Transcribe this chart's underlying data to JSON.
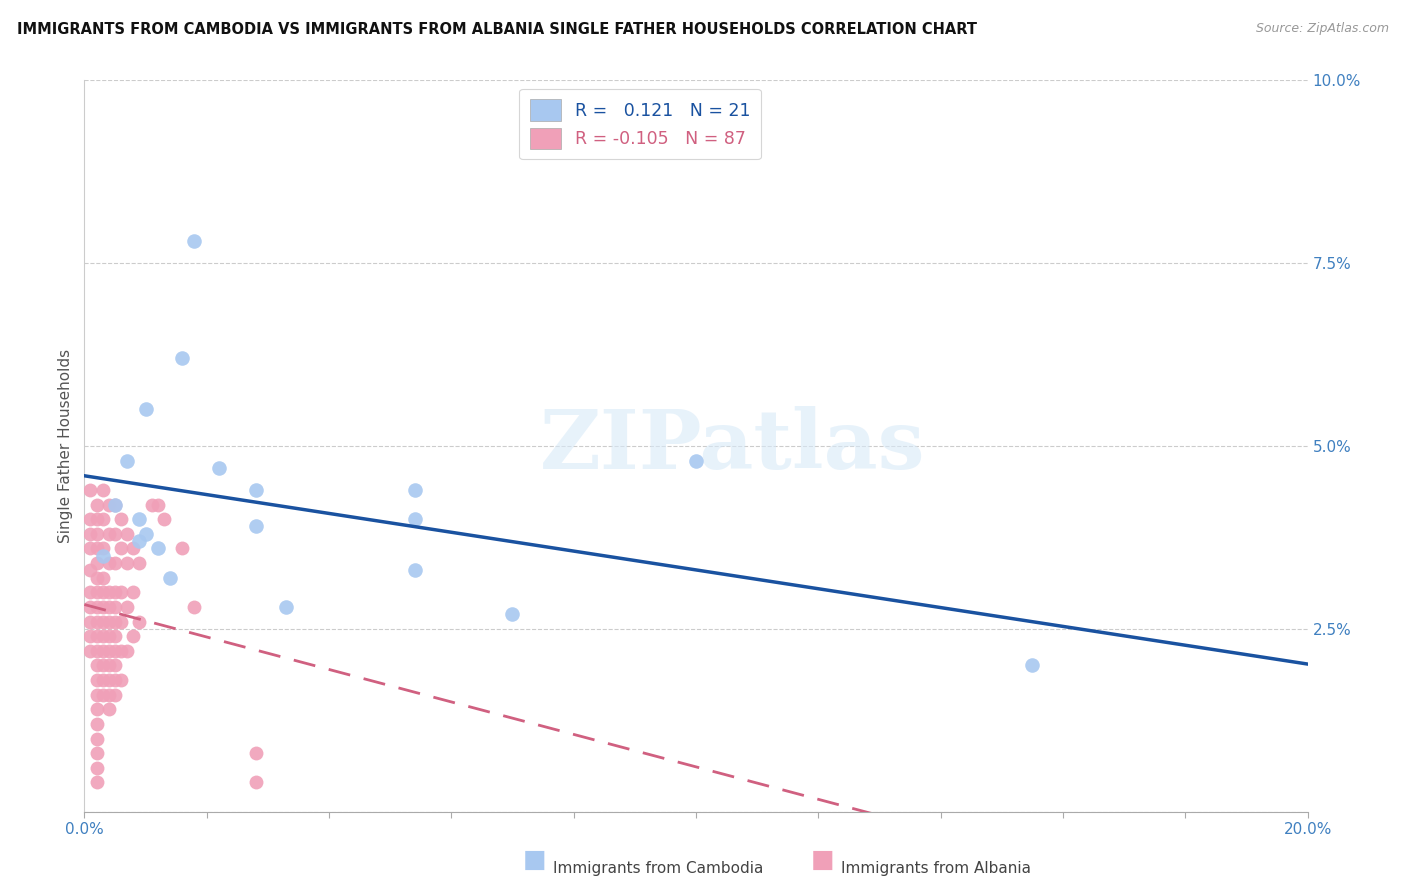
{
  "title": "IMMIGRANTS FROM CAMBODIA VS IMMIGRANTS FROM ALBANIA SINGLE FATHER HOUSEHOLDS CORRELATION CHART",
  "source": "Source: ZipAtlas.com",
  "ylabel": "Single Father Households",
  "xlim": [
    0.0,
    0.2
  ],
  "ylim": [
    0.0,
    0.1
  ],
  "xticks_major": [
    0.0,
    0.2
  ],
  "xtick_major_labels": [
    "0.0%",
    "20.0%"
  ],
  "xticks_minor": [
    0.0,
    0.02,
    0.04,
    0.06,
    0.08,
    0.1,
    0.12,
    0.14,
    0.16,
    0.18,
    0.2
  ],
  "yticks_right": [
    0.0,
    0.025,
    0.05,
    0.075,
    0.1
  ],
  "ytick_labels_right": [
    "",
    "2.5%",
    "5.0%",
    "7.5%",
    "10.0%"
  ],
  "cambodia_color": "#A8C8F0",
  "albania_color": "#F0A0B8",
  "cambodia_line_color": "#1A52A0",
  "albania_line_color": "#D06080",
  "R_cambodia": 0.121,
  "N_cambodia": 21,
  "R_albania": -0.105,
  "N_albania": 87,
  "background_color": "#FFFFFF",
  "watermark": "ZIPatlas",
  "grid_color": "#CCCCCC",
  "cambodia_x": [
    0.003,
    0.005,
    0.007,
    0.009,
    0.009,
    0.01,
    0.01,
    0.012,
    0.014,
    0.016,
    0.018,
    0.022,
    0.028,
    0.028,
    0.033,
    0.054,
    0.054,
    0.054,
    0.07,
    0.1,
    0.155
  ],
  "cambodia_y": [
    0.035,
    0.042,
    0.048,
    0.04,
    0.037,
    0.055,
    0.038,
    0.036,
    0.032,
    0.062,
    0.078,
    0.047,
    0.044,
    0.039,
    0.028,
    0.044,
    0.04,
    0.033,
    0.027,
    0.048,
    0.02
  ],
  "albania_x": [
    0.001,
    0.001,
    0.001,
    0.001,
    0.001,
    0.001,
    0.001,
    0.001,
    0.001,
    0.001,
    0.002,
    0.002,
    0.002,
    0.002,
    0.002,
    0.002,
    0.002,
    0.002,
    0.002,
    0.002,
    0.002,
    0.002,
    0.002,
    0.002,
    0.002,
    0.002,
    0.002,
    0.002,
    0.002,
    0.002,
    0.003,
    0.003,
    0.003,
    0.003,
    0.003,
    0.003,
    0.003,
    0.003,
    0.003,
    0.003,
    0.003,
    0.003,
    0.004,
    0.004,
    0.004,
    0.004,
    0.004,
    0.004,
    0.004,
    0.004,
    0.004,
    0.004,
    0.004,
    0.004,
    0.005,
    0.005,
    0.005,
    0.005,
    0.005,
    0.005,
    0.005,
    0.005,
    0.005,
    0.005,
    0.005,
    0.006,
    0.006,
    0.006,
    0.006,
    0.006,
    0.006,
    0.007,
    0.007,
    0.007,
    0.007,
    0.008,
    0.008,
    0.008,
    0.009,
    0.009,
    0.011,
    0.012,
    0.013,
    0.016,
    0.018,
    0.028,
    0.028
  ],
  "albania_y": [
    0.044,
    0.04,
    0.038,
    0.036,
    0.033,
    0.03,
    0.028,
    0.026,
    0.024,
    0.022,
    0.042,
    0.04,
    0.038,
    0.036,
    0.034,
    0.032,
    0.03,
    0.028,
    0.026,
    0.024,
    0.022,
    0.02,
    0.018,
    0.016,
    0.014,
    0.012,
    0.01,
    0.008,
    0.006,
    0.004,
    0.044,
    0.04,
    0.036,
    0.032,
    0.03,
    0.028,
    0.026,
    0.024,
    0.022,
    0.02,
    0.018,
    0.016,
    0.042,
    0.038,
    0.034,
    0.03,
    0.028,
    0.026,
    0.024,
    0.022,
    0.02,
    0.018,
    0.016,
    0.014,
    0.042,
    0.038,
    0.034,
    0.03,
    0.028,
    0.026,
    0.024,
    0.022,
    0.02,
    0.018,
    0.016,
    0.04,
    0.036,
    0.03,
    0.026,
    0.022,
    0.018,
    0.038,
    0.034,
    0.028,
    0.022,
    0.036,
    0.03,
    0.024,
    0.034,
    0.026,
    0.042,
    0.042,
    0.04,
    0.036,
    0.028,
    0.008,
    0.004
  ]
}
